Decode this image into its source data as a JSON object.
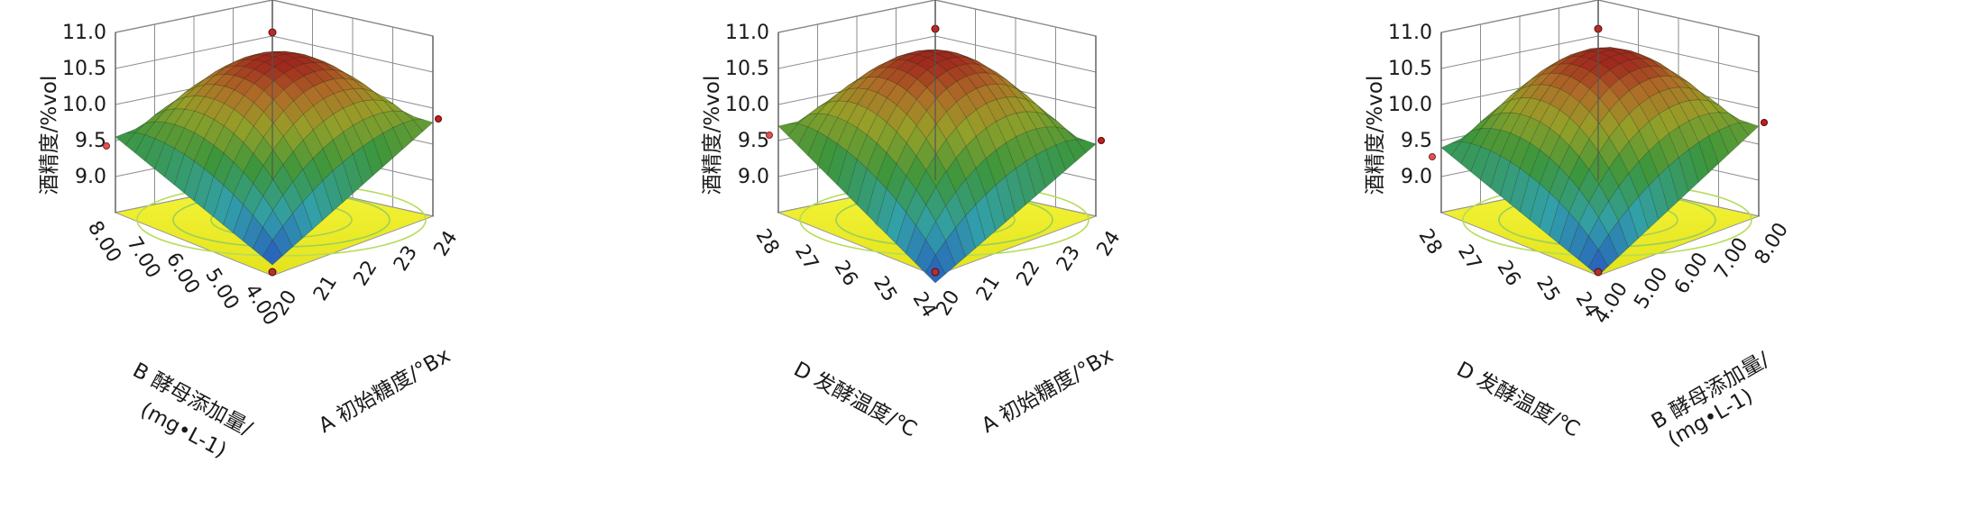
{
  "chart_data": [
    {
      "type": "surface3d",
      "z_title": "酒精度/%vol",
      "z_ticks": [
        "9.0",
        "9.5",
        "10.0",
        "10.5",
        "11.0"
      ],
      "zlim": [
        8.5,
        11.0
      ],
      "x_axis": {
        "title": "A 初始糖度/°Bx",
        "ticks": [
          "20",
          "21",
          "22",
          "23",
          "24"
        ],
        "range": [
          20,
          24
        ]
      },
      "y_axis": {
        "title": [
          "B 酵母添加量/",
          "(mg•L-1)"
        ],
        "ticks": [
          "4.00",
          "5.00",
          "6.00",
          "7.00",
          "8.00"
        ],
        "range": [
          4,
          8
        ]
      },
      "surface": {
        "peak": 10.55,
        "corner_min": 8.65,
        "corner_front_right": 9.8,
        "corner_front_left": 9.55,
        "corner_back": 9.6
      }
    },
    {
      "type": "surface3d",
      "z_title": "酒精度/%vol",
      "z_ticks": [
        "9.0",
        "9.5",
        "10.0",
        "10.5",
        "11.0"
      ],
      "zlim": [
        8.5,
        11.0
      ],
      "x_axis": {
        "title": "A 初始糖度/°Bx",
        "ticks": [
          "20",
          "21",
          "22",
          "23",
          "24"
        ],
        "range": [
          20,
          24
        ]
      },
      "y_axis": {
        "title": [
          "D 发酵温度/℃"
        ],
        "ticks": [
          "24",
          "25",
          "26",
          "27",
          "28"
        ],
        "range": [
          24,
          28
        ]
      },
      "surface": {
        "peak": 10.6,
        "corner_min": 8.4,
        "corner_front_right": 9.5,
        "corner_front_left": 9.7,
        "corner_back": 9.4
      }
    },
    {
      "type": "surface3d",
      "z_title": "酒精度/%vol",
      "z_ticks": [
        "9.0",
        "9.5",
        "10.0",
        "10.5",
        "11.0"
      ],
      "zlim": [
        8.5,
        11.0
      ],
      "x_axis": {
        "title": [
          "B 酵母添加量/",
          "(mg•L-1)"
        ],
        "ticks": [
          "4.00",
          "5.00",
          "6.00",
          "7.00",
          "8.00"
        ],
        "range": [
          4,
          8
        ]
      },
      "y_axis": {
        "title": [
          "D 发酵温度/℃"
        ],
        "ticks": [
          "24",
          "25",
          "26",
          "27",
          "28"
        ],
        "range": [
          24,
          28
        ]
      },
      "surface": {
        "peak": 10.6,
        "corner_min": 8.5,
        "corner_front_right": 9.75,
        "corner_front_left": 9.4,
        "corner_back": 9.6
      }
    }
  ]
}
